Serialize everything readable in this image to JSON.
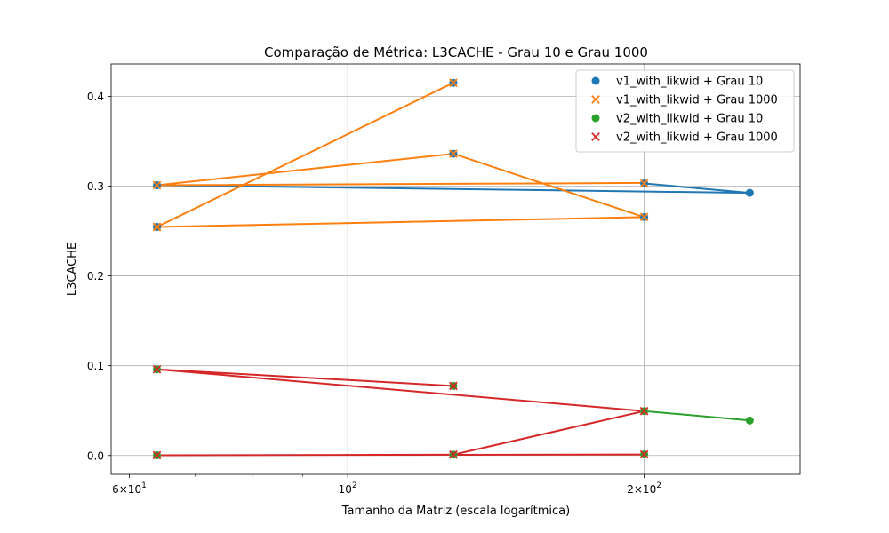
{
  "chart_data": {
    "type": "scatter",
    "title": "Comparação de Métrica: L3CACHE - Grau 10 e Grau 1000",
    "xlabel": "Tamanho da Matriz (escala logarítmica)",
    "ylabel": "L3CACHE",
    "xscale": "log",
    "xlim": [
      57.5,
      288
    ],
    "ylim": [
      -0.021,
      0.436
    ],
    "grid": true,
    "legend_position": "top-right",
    "x_tick_labels": [
      {
        "value": 60,
        "base": "6",
        "mult": "×10",
        "exp": "1"
      },
      {
        "value": 100,
        "base": "10",
        "mult": "",
        "exp": "2"
      },
      {
        "value": 200,
        "base": "2",
        "mult": "×10",
        "exp": "2"
      }
    ],
    "x_minor_ticks": [
      70,
      80,
      90
    ],
    "x_major_gridlines": [
      100
    ],
    "y_ticks": [
      0.0,
      0.1,
      0.2,
      0.3,
      0.4
    ],
    "y_tick_labels": [
      "0.0",
      "0.1",
      "0.2",
      "0.3",
      "0.4"
    ],
    "series": [
      {
        "name": "v1_with_likwid + Grau 10",
        "marker": "circle",
        "color": "#1f77b4",
        "x": [
          64,
          200,
          256,
          64,
          128,
          200,
          64,
          128
        ],
        "y": [
          0.301,
          0.303,
          0.2925,
          0.2545,
          0.336,
          0.2655,
          0.2545,
          0.415
        ],
        "line": [
          [
            64,
            0.301
          ],
          [
            256,
            0.2925
          ],
          [
            200,
            0.303
          ]
        ]
      },
      {
        "name": "v1_with_likwid + Grau 1000",
        "marker": "x",
        "color": "#ff7f0e",
        "x": [
          64,
          200,
          64,
          128,
          200,
          64,
          128
        ],
        "y": [
          0.301,
          0.303,
          0.2545,
          0.336,
          0.2655,
          0.2545,
          0.415
        ],
        "line": [
          [
            200,
            0.3035
          ],
          [
            64,
            0.301
          ],
          [
            128,
            0.336
          ],
          [
            200,
            0.2655
          ],
          [
            64,
            0.2545
          ],
          [
            128,
            0.415
          ]
        ]
      },
      {
        "name": "v2_with_likwid + Grau 10",
        "marker": "circle",
        "color": "#2ca02c",
        "x": [
          64,
          128,
          200,
          256,
          64,
          128,
          200
        ],
        "y": [
          0.096,
          0.0775,
          0.0495,
          0.039,
          0.0003,
          0.001,
          0.0012
        ],
        "line": [
          [
            200,
            0.0495
          ],
          [
            256,
            0.039
          ]
        ]
      },
      {
        "name": "v2_with_likwid + Grau 1000",
        "marker": "x",
        "color": "#d62728",
        "x": [
          64,
          128,
          200,
          64,
          128,
          200
        ],
        "y": [
          0.096,
          0.0775,
          0.0495,
          0.0003,
          0.001,
          0.0012
        ],
        "line": [
          [
            128,
            0.0775
          ],
          [
            64,
            0.096
          ],
          [
            200,
            0.0495
          ],
          [
            128,
            0.001
          ],
          [
            64,
            0.0003
          ],
          [
            200,
            0.0012
          ]
        ]
      }
    ]
  }
}
